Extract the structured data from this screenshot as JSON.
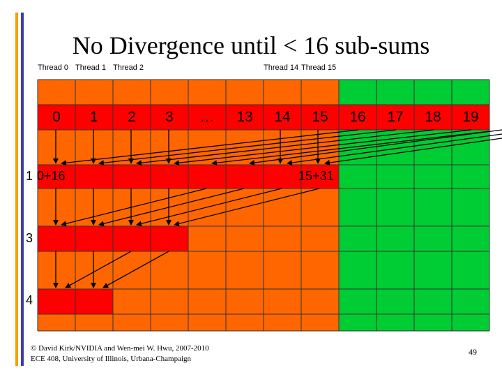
{
  "title": "No Divergence until < 16 sub-sums",
  "thread_labels": [
    "Thread 0",
    "Thread 1",
    "Thread 2",
    "Thread 14",
    "Thread 15"
  ],
  "cell_labels": [
    "0",
    "1",
    "2",
    "3",
    "…",
    "13",
    "14",
    "15",
    "16",
    "17",
    "18",
    "19"
  ],
  "row_labels": [
    "1",
    "0+16",
    "15+31",
    "3",
    "4"
  ],
  "footer": {
    "line1": "© David Kirk/NVIDIA and Wen-mei W. Hwu, 2007-2010",
    "line2": "ECE 408, University of Illinois, Urbana-Champaign"
  },
  "page_number": "49",
  "colors": {
    "orange": "#ff6600",
    "red": "#ff0000",
    "green": "#00cc33",
    "accent_orange": "#f2a200",
    "accent_blue": "#3b3bb3"
  }
}
